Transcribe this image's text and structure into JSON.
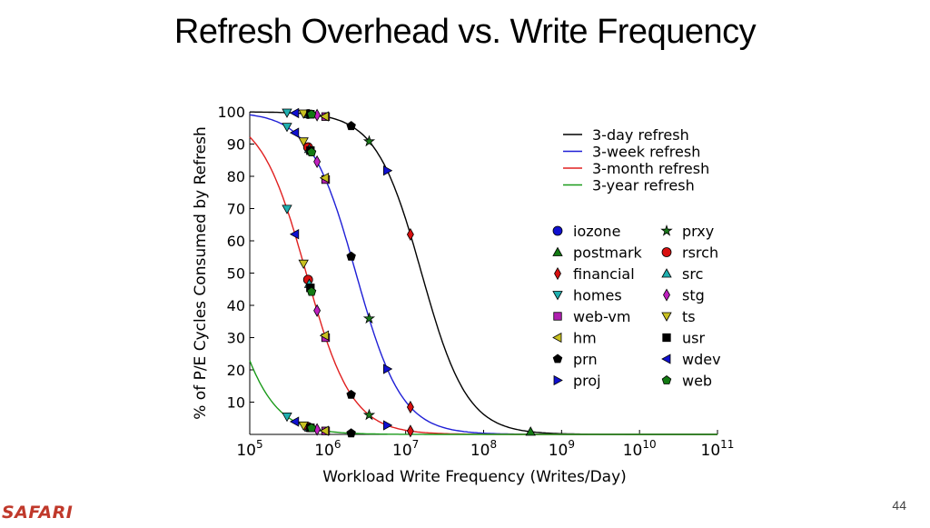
{
  "slide": {
    "title": "Refresh Overhead vs. Write Frequency",
    "logo": "SAFARI",
    "page_number": "44"
  },
  "chart_data": {
    "type": "line",
    "title": "",
    "xlabel": "Workload Write Frequency (Writes/Day)",
    "ylabel": "% of P/E Cycles Consumed by Refresh",
    "xscale": "log",
    "xlim": [
      100000,
      100000000000
    ],
    "ylim": [
      0,
      100
    ],
    "xticks": [
      {
        "value": 100000,
        "base": "10",
        "exp": "5"
      },
      {
        "value": 1000000,
        "base": "10",
        "exp": "6"
      },
      {
        "value": 10000000,
        "base": "10",
        "exp": "7"
      },
      {
        "value": 100000000,
        "base": "10",
        "exp": "8"
      },
      {
        "value": 1000000000,
        "base": "10",
        "exp": "9"
      },
      {
        "value": 10000000000,
        "base": "10",
        "exp": "10"
      },
      {
        "value": 100000000000,
        "base": "10",
        "exp": "11"
      }
    ],
    "yticks": [
      "10",
      "20",
      "30",
      "40",
      "50",
      "60",
      "70",
      "80",
      "90",
      "100"
    ],
    "grid": false,
    "series": [
      {
        "name": "3-day refresh",
        "color": "#000000",
        "x_half": 16000000,
        "k": 1.48,
        "ymax": 100
      },
      {
        "name": "3-week refresh",
        "color": "#1f1fd6",
        "x_half": 2300000,
        "k": 1.48,
        "ymax": 100
      },
      {
        "name": "3-month refresh",
        "color": "#e02020",
        "x_half": 530000,
        "k": 1.48,
        "ymax": 100
      },
      {
        "name": "3-year refresh",
        "color": "#1a9a1a",
        "x_half": 44000,
        "k": 1.48,
        "ymax": 100
      }
    ],
    "line_legend_placement": "top-right",
    "workloads": [
      {
        "name": "iozone",
        "marker": "circle",
        "color": "#1010d0",
        "x": 880000000
      },
      {
        "name": "prxy",
        "marker": "star",
        "color": "#1a7a1a",
        "x": 3400000
      },
      {
        "name": "postmark",
        "marker": "triangle-up",
        "color": "#137a13",
        "x": 400000000
      },
      {
        "name": "rsrch",
        "marker": "circle",
        "color": "#d81010",
        "x": 560000
      },
      {
        "name": "financial",
        "marker": "diamond",
        "color": "#d81010",
        "x": 11500000
      },
      {
        "name": "src",
        "marker": "triangle-up",
        "color": "#20b0b0",
        "x": 580000
      },
      {
        "name": "homes",
        "marker": "triangle-down",
        "color": "#20b0b0",
        "x": 300000
      },
      {
        "name": "stg",
        "marker": "diamond",
        "color": "#c020c0",
        "x": 730000
      },
      {
        "name": "web-vm",
        "marker": "square",
        "color": "#b020b0",
        "x": 940000
      },
      {
        "name": "ts",
        "marker": "triangle-down",
        "color": "#c8c020",
        "x": 490000
      },
      {
        "name": "hm",
        "marker": "triangle-left",
        "color": "#c8c020",
        "x": 920000
      },
      {
        "name": "usr",
        "marker": "square",
        "color": "#000000",
        "x": 600000
      },
      {
        "name": "prn",
        "marker": "pentagon",
        "color": "#000000",
        "x": 2000000
      },
      {
        "name": "wdev",
        "marker": "triangle-left",
        "color": "#1010d0",
        "x": 380000
      },
      {
        "name": "proj",
        "marker": "triangle-right",
        "color": "#1010d0",
        "x": 5800000
      },
      {
        "name": "web",
        "marker": "pentagon",
        "color": "#137a13",
        "x": 620000
      }
    ],
    "marker_legend_placement": "right"
  }
}
